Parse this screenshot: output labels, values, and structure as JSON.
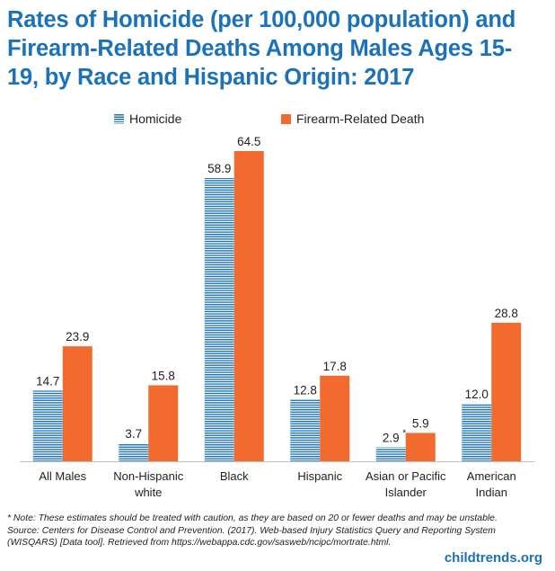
{
  "chart_data": {
    "type": "bar",
    "title": "Rates of Homicide (per 100,000 population) and Firearm-Related Deaths Among Males Ages 15-19, by Race and Hispanic Origin: 2017",
    "title_lines": [
      "Rates of Homicide (per 100,000 population) and",
      "Firearm-Related Deaths Among Males Ages 15-",
      "19, by Race and Hispanic Origin: 2017"
    ],
    "categories": [
      "All Males",
      "Non-Hispanic white",
      "Black",
      "Hispanic",
      "Asian or Pacific Islander",
      "American Indian"
    ],
    "category_lines": [
      [
        "All Males"
      ],
      [
        "Non-Hispanic",
        "white"
      ],
      [
        "Black"
      ],
      [
        "Hispanic"
      ],
      [
        "Asian or Pacific",
        "Islander"
      ],
      [
        "American",
        "Indian"
      ]
    ],
    "series": [
      {
        "name": "Homicide",
        "values": [
          14.7,
          3.7,
          58.9,
          12.8,
          2.9,
          12.0
        ],
        "labels": [
          "14.7",
          "3.7",
          "58.9",
          "12.8",
          "2.9",
          "12.0"
        ],
        "markers": [
          "",
          "",
          "",
          "",
          "*",
          ""
        ],
        "color": "#1f74b8",
        "pattern": "horizontal-stripes"
      },
      {
        "name": "Firearm-Related Death",
        "values": [
          23.9,
          15.8,
          64.5,
          17.8,
          5.9,
          28.8
        ],
        "labels": [
          "23.9",
          "15.8",
          "64.5",
          "17.8",
          "5.9",
          "28.8"
        ],
        "markers": [
          "",
          "",
          "",
          "",
          "",
          ""
        ],
        "color": "#f26a2e",
        "pattern": "solid"
      }
    ],
    "ylim": [
      0,
      64.5
    ],
    "xlabel": "",
    "ylabel": "",
    "grid": false,
    "legend": "top-center"
  },
  "notes": [
    "* Note: These estimates should be treated with caution, as they are based on 20 or fewer deaths and may be unstable.",
    "Source: Centers for Disease Control and Prevention. (2017). Web-based Injury Statistics Query and Reporting System",
    "(WISQARS) [Data tool]. Retrieved from https://webappa.cdc.gov/sasweb/ncipc/mortrate.html."
  ],
  "brand": "childtrends.org"
}
